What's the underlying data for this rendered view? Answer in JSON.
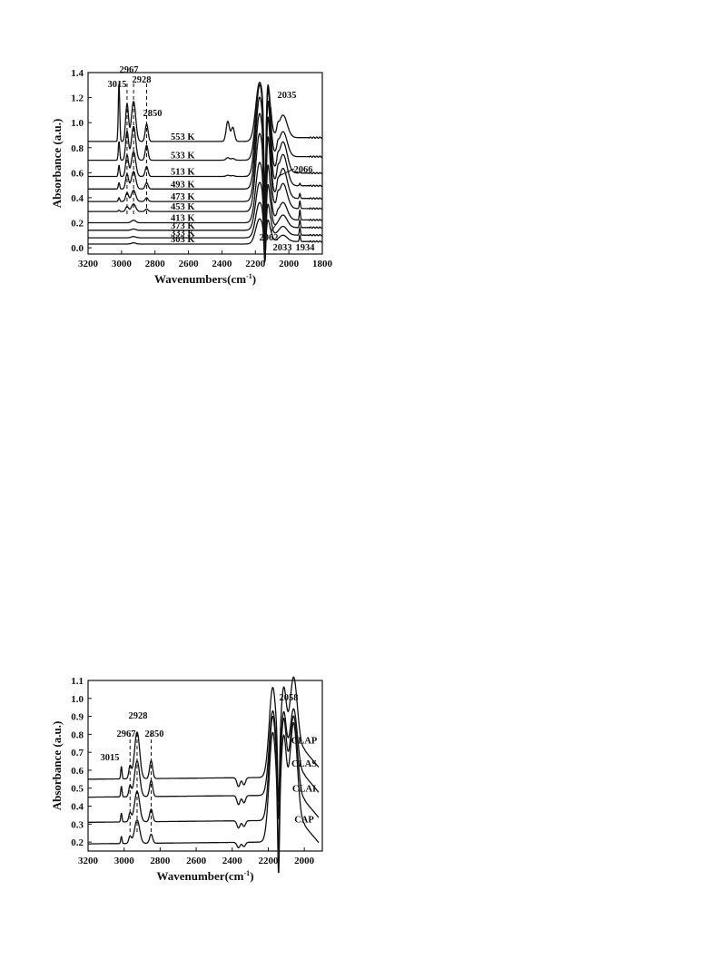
{
  "chart_data": [
    {
      "type": "line",
      "title": "",
      "xlabel": "Wavenumbers",
      "xlabel_unit": "(cm-1)",
      "xlabel_base": "(cm",
      "xlabel_sup": "-1",
      "xlabel_close": ")",
      "ylabel": "Absorbance (a.u.)",
      "xlim": [
        3200,
        1800
      ],
      "ylim": [
        -0.05,
        1.4
      ],
      "x_ticks": [
        3200,
        3000,
        2800,
        2600,
        2400,
        2200,
        2000,
        1800
      ],
      "y_ticks": [
        0.0,
        0.2,
        0.4,
        0.6,
        0.8,
        1.0,
        1.2,
        1.4
      ],
      "y_tick_labels": [
        "0.0",
        "0.2",
        "0.4",
        "0.6",
        "0.8",
        "1.0",
        "1.2",
        "1.4"
      ],
      "grid": false,
      "series": [
        {
          "name": "303 K",
          "baseline": 0.03,
          "c2967": 0.0,
          "c2928": 0.01,
          "c2850": 0.0,
          "c3015": 0.0,
          "co2": 0.0,
          "pos": 0.2,
          "neg": 0.17,
          "c2035": 0.05,
          "c2066": 0.0,
          "c1934": 0.05
        },
        {
          "name": "333 K",
          "baseline": 0.08,
          "c2967": 0.0,
          "c2928": 0.01,
          "c2850": 0.0,
          "c3015": 0.0,
          "co2": 0.0,
          "pos": 0.28,
          "neg": 0.27,
          "c2035": 0.07,
          "c2066": 0.0,
          "c1934": 0.06
        },
        {
          "name": "373 K",
          "baseline": 0.14,
          "c2967": 0.0,
          "c2928": 0.01,
          "c2850": 0.0,
          "c3015": 0.0,
          "co2": 0.0,
          "pos": 0.38,
          "neg": 0.38,
          "c2035": 0.1,
          "c2066": 0.0,
          "c1934": 0.06
        },
        {
          "name": "413 K",
          "baseline": 0.2,
          "c2967": 0.0,
          "c2928": 0.02,
          "c2850": 0.0,
          "c3015": 0.0,
          "co2": 0.0,
          "pos": 0.48,
          "neg": 0.47,
          "c2035": 0.14,
          "c2066": 0.02,
          "c1934": 0.08
        },
        {
          "name": "453 K",
          "baseline": 0.29,
          "c2967": 0.04,
          "c2928": 0.06,
          "c2850": 0.02,
          "c3015": 0.01,
          "co2": 0.0,
          "pos": 0.62,
          "neg": 0.58,
          "c2035": 0.2,
          "c2066": 0.05,
          "c1934": 0.06
        },
        {
          "name": "473 K",
          "baseline": 0.37,
          "c2967": 0.07,
          "c2928": 0.09,
          "c2850": 0.03,
          "c3015": 0.03,
          "co2": 0.0,
          "pos": 0.7,
          "neg": 0.62,
          "c2035": 0.24,
          "c2066": 0.05,
          "c1934": 0.04
        },
        {
          "name": "493 K",
          "baseline": 0.47,
          "c2967": 0.12,
          "c2928": 0.14,
          "c2850": 0.05,
          "c3015": 0.05,
          "co2": 0.0,
          "pos": 0.73,
          "neg": 0.64,
          "c2035": 0.25,
          "c2066": 0.05,
          "c1934": 0.02
        },
        {
          "name": "513 K",
          "baseline": 0.57,
          "c2967": 0.17,
          "c2928": 0.2,
          "c2850": 0.08,
          "c3015": 0.09,
          "co2": 0.01,
          "pos": 0.73,
          "neg": 0.6,
          "c2035": 0.25,
          "c2066": 0.05,
          "c1934": 0.01
        },
        {
          "name": "533 K",
          "baseline": 0.7,
          "c2967": 0.23,
          "c2928": 0.27,
          "c2850": 0.12,
          "c3015": 0.15,
          "co2": 0.02,
          "pos": 0.6,
          "neg": 0.55,
          "c2035": 0.2,
          "c2066": 0.04,
          "c1934": 0.0
        },
        {
          "name": "553 K",
          "baseline": 0.85,
          "c2967": 0.3,
          "c2928": 0.32,
          "c2850": 0.14,
          "c3015": 0.47,
          "co2": 0.16,
          "pos": 0.47,
          "neg": 0.55,
          "c2035": 0.18,
          "c2066": 0.04,
          "c1934": 0.0
        }
      ],
      "annotations": [
        "3015",
        "2967",
        "2928",
        "2850",
        "2035",
        "2066",
        "2062",
        "2033",
        "1934"
      ],
      "dashed_markers": [
        2967,
        2928,
        2850
      ]
    },
    {
      "type": "line",
      "title": "",
      "xlabel": "Wavenumber",
      "xlabel_base": "(cm",
      "xlabel_sup": "-1",
      "xlabel_close": ")",
      "ylabel": "Absorbance (a.u.)",
      "xlim": [
        3200,
        1900
      ],
      "ylim": [
        0.15,
        1.1
      ],
      "x_ticks": [
        3200,
        3000,
        2800,
        2600,
        2400,
        2200,
        2000
      ],
      "y_ticks": [
        0.2,
        0.3,
        0.4,
        0.5,
        0.6,
        0.7,
        0.8,
        0.9,
        1.0,
        1.1
      ],
      "y_tick_labels": [
        "0.2",
        "0.3",
        "0.4",
        "0.5",
        "0.6",
        "0.7",
        "0.8",
        "0.9",
        "1.0",
        "1.1"
      ],
      "grid": false,
      "series": [
        {
          "name": "CAP",
          "baseline": 0.19,
          "c2967": 0.04,
          "c2928": 0.13,
          "c2850": 0.05,
          "c3015": 0.04,
          "co2": -0.03,
          "pos": 0.61,
          "c2058": 0.58,
          "tail": 0.28
        },
        {
          "name": "CLAI",
          "baseline": 0.31,
          "c2967": 0.05,
          "c2928": 0.17,
          "c2850": 0.07,
          "c3015": 0.05,
          "co2": -0.04,
          "pos": 0.58,
          "c2058": 0.48,
          "tail": 0.42
        },
        {
          "name": "CLAS",
          "baseline": 0.45,
          "c2967": 0.06,
          "c2928": 0.2,
          "c2850": 0.09,
          "c3015": 0.06,
          "co2": -0.05,
          "pos": 0.47,
          "c2058": 0.38,
          "tail": 0.56
        },
        {
          "name": "CLAP",
          "baseline": 0.55,
          "c2967": 0.07,
          "c2928": 0.26,
          "c2850": 0.1,
          "c3015": 0.07,
          "co2": -0.05,
          "pos": 0.5,
          "c2058": 0.42,
          "tail": 0.7
        }
      ],
      "annotations": [
        "2928",
        "2967",
        "2850",
        "3015",
        "2058"
      ],
      "dashed_markers": [
        2967,
        2928,
        2850
      ]
    }
  ]
}
